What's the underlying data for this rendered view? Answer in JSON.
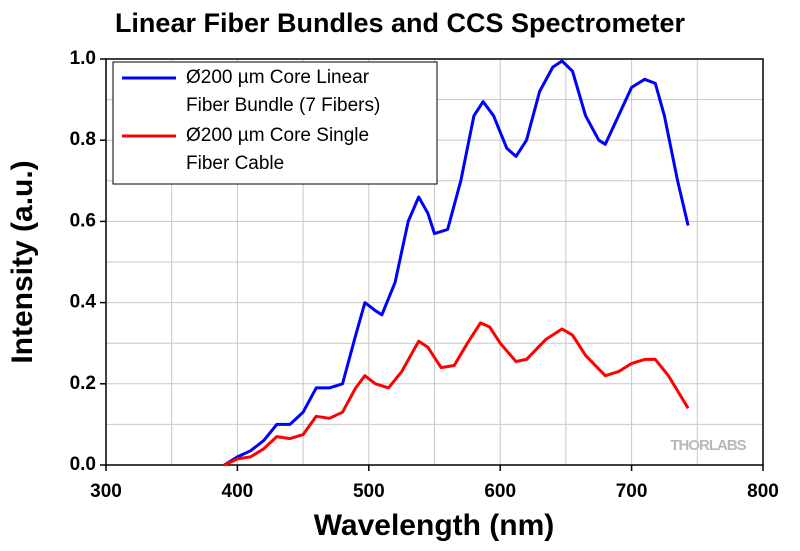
{
  "chart_data": {
    "type": "line",
    "title": "Linear Fiber Bundles and CCS Spectrometer",
    "x_label": "Wavelength (nm)",
    "y_label": "Intensity (a.u.)",
    "watermark": "THORLABS",
    "xlim": [
      300,
      800
    ],
    "ylim": [
      0,
      1
    ],
    "xticks": [
      300,
      400,
      500,
      600,
      700,
      800
    ],
    "yticks": [
      {
        "value": 0,
        "label": "0.0"
      },
      {
        "value": 0.2,
        "label": "0.2"
      },
      {
        "value": 0.4,
        "label": "0.4"
      },
      {
        "value": 0.6,
        "label": "0.6"
      },
      {
        "value": 0.8,
        "label": "0.8"
      },
      {
        "value": 1,
        "label": "1.0"
      }
    ],
    "grid": true,
    "minor_grid": true,
    "legend_position": "upper left",
    "series": [
      {
        "name": [
          "Ø200 µm Core Linear",
          "Fiber Bundle (7 Fibers)"
        ],
        "color": "#0000ff",
        "x": [
          390,
          400,
          410,
          420,
          430,
          440,
          450,
          460,
          470,
          480,
          490,
          497,
          505,
          510,
          520,
          530,
          538,
          545,
          550,
          560,
          570,
          580,
          587,
          595,
          605,
          612,
          620,
          630,
          640,
          647,
          655,
          665,
          675,
          680,
          690,
          700,
          710,
          718,
          725,
          735,
          743
        ],
        "values": [
          0,
          0.02,
          0.035,
          0.06,
          0.1,
          0.1,
          0.13,
          0.19,
          0.19,
          0.2,
          0.32,
          0.4,
          0.38,
          0.37,
          0.45,
          0.6,
          0.66,
          0.62,
          0.57,
          0.58,
          0.7,
          0.86,
          0.895,
          0.86,
          0.78,
          0.76,
          0.8,
          0.92,
          0.98,
          0.995,
          0.97,
          0.86,
          0.8,
          0.79,
          0.86,
          0.93,
          0.95,
          0.94,
          0.86,
          0.7,
          0.59
        ]
      },
      {
        "name": [
          "Ø200 µm Core Single",
          "Fiber Cable"
        ],
        "color": "#ff0000",
        "x": [
          390,
          400,
          410,
          420,
          430,
          440,
          450,
          460,
          470,
          480,
          490,
          497,
          505,
          515,
          525,
          538,
          545,
          555,
          565,
          575,
          585,
          592,
          600,
          612,
          620,
          635,
          647,
          655,
          665,
          680,
          690,
          700,
          710,
          718,
          728,
          743
        ],
        "values": [
          0,
          0.015,
          0.02,
          0.04,
          0.07,
          0.065,
          0.075,
          0.12,
          0.115,
          0.13,
          0.19,
          0.22,
          0.2,
          0.19,
          0.23,
          0.305,
          0.29,
          0.24,
          0.245,
          0.3,
          0.35,
          0.34,
          0.3,
          0.255,
          0.26,
          0.31,
          0.335,
          0.32,
          0.27,
          0.22,
          0.23,
          0.25,
          0.26,
          0.26,
          0.22,
          0.14
        ]
      }
    ]
  }
}
